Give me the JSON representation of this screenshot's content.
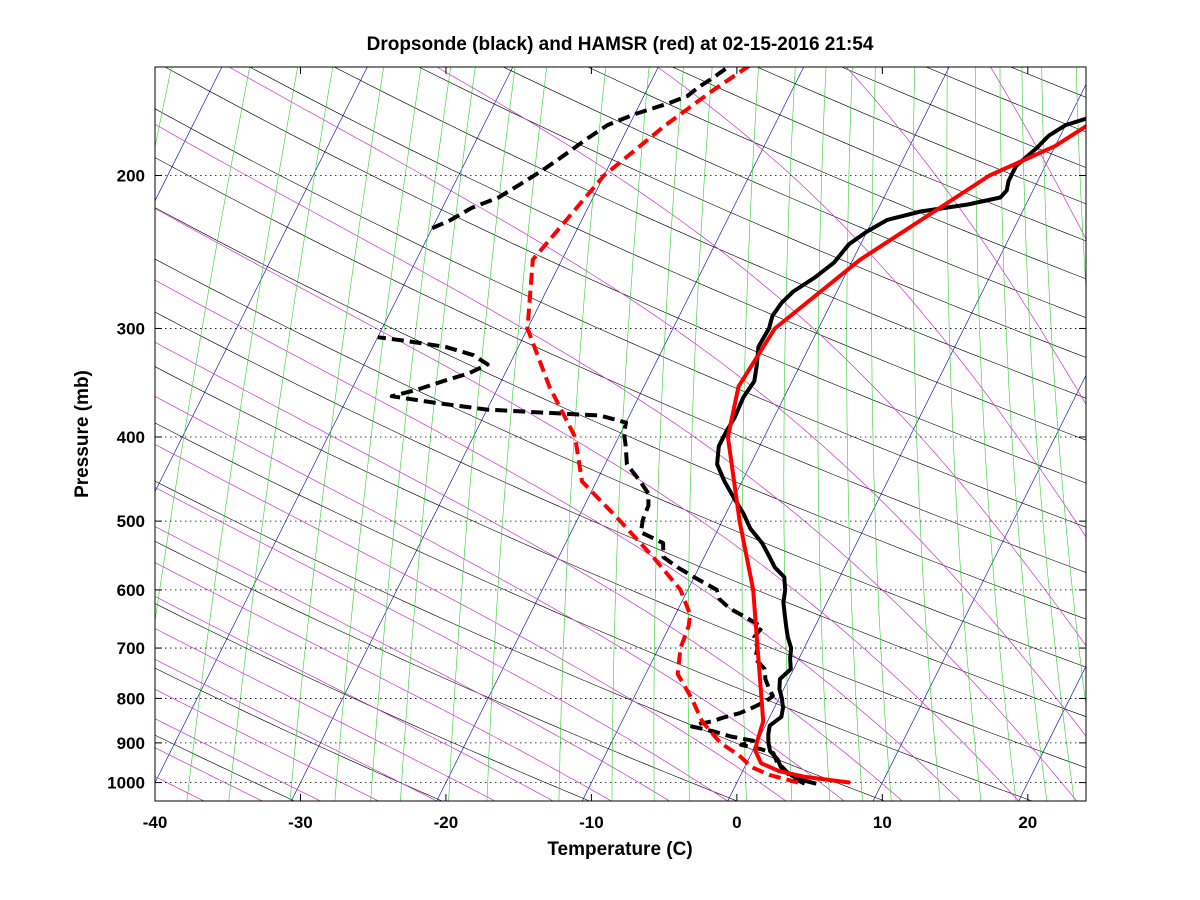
{
  "chart_data": {
    "type": "line",
    "title": "Dropsonde (black) and HAMSR (red) at 02-15-2016 21:54",
    "xlabel": "Temperature (C)",
    "ylabel": "Pressure (mb)",
    "xlim": [
      -40,
      24
    ],
    "ylim": [
      1050,
      150
    ],
    "y_scale": "log",
    "x_ticks": [
      -40,
      -30,
      -20,
      -10,
      0,
      10,
      20
    ],
    "y_ticks": [
      200,
      300,
      400,
      500,
      600,
      700,
      800,
      900,
      1000
    ],
    "grid": "dotted horizontal lines at pressure ticks",
    "background_lines": {
      "skew_temperature_isotherms": "blue",
      "dry_adiabats": "black",
      "saturated_adiabats": "magenta",
      "mixing_ratio_lines": "green"
    },
    "colors": {
      "dropsonde": "#000000",
      "hamsr": "#ff0000"
    },
    "series": [
      {
        "kind": "temperature",
        "source": "dropsonde",
        "style": "solid",
        "color": "#000000",
        "points": [
          [
            1003,
            5.5
          ],
          [
            990,
            4.0
          ],
          [
            975,
            3.2
          ],
          [
            960,
            2.5
          ],
          [
            940,
            2.0
          ],
          [
            920,
            1.2
          ],
          [
            900,
            0.8
          ],
          [
            880,
            0.5
          ],
          [
            860,
            0.3
          ],
          [
            840,
            0.8
          ],
          [
            820,
            0.6
          ],
          [
            800,
            0.2
          ],
          [
            780,
            -0.3
          ],
          [
            760,
            -0.6
          ],
          [
            740,
            -0.2
          ],
          [
            720,
            -0.6
          ],
          [
            700,
            -0.9
          ],
          [
            680,
            -1.5
          ],
          [
            660,
            -2.0
          ],
          [
            640,
            -2.5
          ],
          [
            620,
            -3.0
          ],
          [
            600,
            -3.3
          ],
          [
            580,
            -3.8
          ],
          [
            565,
            -4.8
          ],
          [
            550,
            -5.5
          ],
          [
            530,
            -6.5
          ],
          [
            510,
            -7.8
          ],
          [
            490,
            -8.8
          ],
          [
            470,
            -10.0
          ],
          [
            450,
            -11.2
          ],
          [
            430,
            -12.3
          ],
          [
            410,
            -12.8
          ],
          [
            395,
            -12.8
          ],
          [
            380,
            -12.7
          ],
          [
            360,
            -12.8
          ],
          [
            345,
            -12.6
          ],
          [
            330,
            -13.0
          ],
          [
            315,
            -13.5
          ],
          [
            300,
            -13.4
          ],
          [
            290,
            -13.6
          ],
          [
            280,
            -13.4
          ],
          [
            272,
            -13.0
          ],
          [
            262,
            -12.0
          ],
          [
            252,
            -11.2
          ],
          [
            240,
            -10.8
          ],
          [
            232,
            -10.0
          ],
          [
            225,
            -9.0
          ],
          [
            220,
            -7.0
          ],
          [
            216,
            -4.0
          ],
          [
            212,
            -2.0
          ],
          [
            208,
            -1.8
          ],
          [
            203,
            -2.0
          ],
          [
            195,
            -2.0
          ],
          [
            186,
            -1.2
          ],
          [
            180,
            -0.8
          ],
          [
            175,
            0.0
          ],
          [
            170,
            2.0
          ],
          [
            165,
            4.0
          ],
          [
            160,
            5.8
          ],
          [
            156,
            6.5
          ],
          [
            152,
            7.5
          ],
          [
            149,
            8.8
          ],
          [
            146,
            9.2
          ]
        ]
      },
      {
        "kind": "dewpoint",
        "source": "dropsonde",
        "style": "dashed",
        "color": "#000000",
        "points": [
          [
            1003,
            4.7
          ],
          [
            985,
            3.5
          ],
          [
            965,
            2.8
          ],
          [
            945,
            2.0
          ],
          [
            925,
            1.5
          ],
          [
            915,
            0.5
          ],
          [
            905,
            -1.0
          ],
          [
            895,
            -0.3
          ],
          [
            885,
            -2.0
          ],
          [
            872,
            -3.5
          ],
          [
            862,
            -5.0
          ],
          [
            855,
            -4.5
          ],
          [
            850,
            -3.8
          ],
          [
            842,
            -3.2
          ],
          [
            832,
            -2.2
          ],
          [
            820,
            -1.5
          ],
          [
            806,
            -0.8
          ],
          [
            795,
            -0.5
          ],
          [
            780,
            -1.0
          ],
          [
            760,
            -1.6
          ],
          [
            740,
            -2.0
          ],
          [
            720,
            -3.0
          ],
          [
            700,
            -3.2
          ],
          [
            680,
            -3.8
          ],
          [
            662,
            -3.6
          ],
          [
            646,
            -5.0
          ],
          [
            630,
            -6.5
          ],
          [
            615,
            -7.5
          ],
          [
            600,
            -8.0
          ],
          [
            580,
            -10.0
          ],
          [
            565,
            -11.5
          ],
          [
            550,
            -12.8
          ],
          [
            530,
            -13.3
          ],
          [
            515,
            -15.2
          ],
          [
            498,
            -15.5
          ],
          [
            480,
            -15.6
          ],
          [
            465,
            -16.0
          ],
          [
            450,
            -17.0
          ],
          [
            430,
            -18.5
          ],
          [
            410,
            -19.2
          ],
          [
            395,
            -19.8
          ],
          [
            385,
            -20.0
          ],
          [
            378,
            -22.0
          ],
          [
            375,
            -26.0
          ],
          [
            372,
            -30.0
          ],
          [
            365,
            -34.0
          ],
          [
            359,
            -37.0
          ],
          [
            353,
            -35.5
          ],
          [
            345,
            -34.0
          ],
          [
            338,
            -32.5
          ],
          [
            330,
            -31.5
          ],
          [
            322,
            -32.8
          ],
          [
            315,
            -35.0
          ],
          [
            310,
            -38.0
          ],
          [
            307,
            -40.0
          ]
        ]
      },
      {
        "kind": "dewpoint_upper",
        "source": "dropsonde",
        "style": "dashed",
        "color": "#000000",
        "points": [
          [
            230,
            -40.0
          ],
          [
            225,
            -39.0
          ],
          [
            218,
            -38.0
          ],
          [
            212,
            -36.5
          ],
          [
            205,
            -35.5
          ],
          [
            198,
            -34.5
          ],
          [
            190,
            -33.5
          ],
          [
            182,
            -32.5
          ],
          [
            175,
            -31.5
          ],
          [
            170,
            -30.0
          ],
          [
            165,
            -28.0
          ],
          [
            162,
            -27.0
          ],
          [
            158,
            -26.5
          ],
          [
            154,
            -25.8
          ],
          [
            150,
            -25.2
          ],
          [
            147,
            -24.8
          ]
        ]
      },
      {
        "kind": "temperature",
        "source": "HAMSR",
        "style": "solid",
        "color": "#ff0000",
        "points": [
          [
            1000,
            7.8
          ],
          [
            985,
            4.5
          ],
          [
            970,
            2.5
          ],
          [
            950,
            1.0
          ],
          [
            920,
            0.2
          ],
          [
            900,
            0.0
          ],
          [
            850,
            -0.3
          ],
          [
            800,
            -1.2
          ],
          [
            700,
            -3.2
          ],
          [
            600,
            -5.5
          ],
          [
            500,
            -8.8
          ],
          [
            400,
            -12.5
          ],
          [
            350,
            -13.5
          ],
          [
            300,
            -13.0
          ],
          [
            250,
            -9.5
          ],
          [
            200,
            -3.5
          ],
          [
            185,
            0.0
          ],
          [
            146,
            6.5
          ]
        ]
      },
      {
        "kind": "dewpoint",
        "source": "HAMSR",
        "style": "dashed",
        "color": "#ff0000",
        "points": [
          [
            1000,
            4.2
          ],
          [
            980,
            2.0
          ],
          [
            960,
            0.5
          ],
          [
            930,
            -0.8
          ],
          [
            900,
            -2.5
          ],
          [
            850,
            -4.5
          ],
          [
            800,
            -6.0
          ],
          [
            750,
            -7.8
          ],
          [
            700,
            -8.5
          ],
          [
            660,
            -8.7
          ],
          [
            640,
            -9.0
          ],
          [
            600,
            -10.5
          ],
          [
            550,
            -13.5
          ],
          [
            500,
            -17.0
          ],
          [
            450,
            -21.0
          ],
          [
            400,
            -23.0
          ],
          [
            350,
            -26.5
          ],
          [
            300,
            -30.0
          ],
          [
            250,
            -32.0
          ],
          [
            200,
            -30.0
          ],
          [
            175,
            -27.5
          ],
          [
            160,
            -25.5
          ],
          [
            146,
            -23.2
          ]
        ]
      }
    ]
  }
}
